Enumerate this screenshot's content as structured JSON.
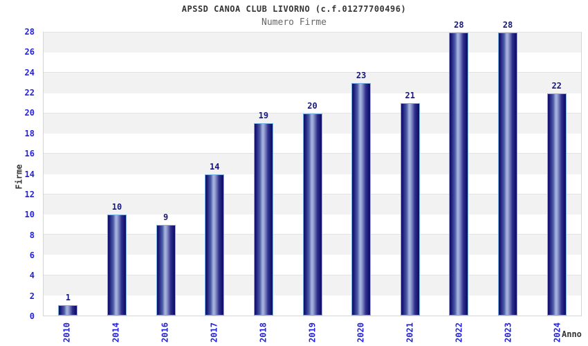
{
  "chart_data": {
    "type": "bar",
    "title": "APSSD CANOA CLUB LIVORNO (c.f.01277700496)",
    "subtitle": "Numero Firme",
    "xlabel": "Anno",
    "ylabel": "Firme",
    "categories": [
      "2010",
      "2014",
      "2016",
      "2017",
      "2018",
      "2019",
      "2020",
      "2021",
      "2022",
      "2023",
      "2024"
    ],
    "values": [
      1,
      10,
      9,
      14,
      19,
      20,
      23,
      21,
      28,
      28,
      22
    ],
    "ylim": [
      0,
      28
    ],
    "ytick_step": 2,
    "legend": "none",
    "grid": "horizontal-bands-alternating",
    "colors": {
      "title_text": "#343434",
      "subtitle_text": "#666666",
      "tick_label": "#2222dd",
      "value_label": "#17177c",
      "axis_title_text": "#343434",
      "band_fill": "#f2f2f2",
      "grid_line": "#e3e3e3",
      "plot_border": "#d4d4d4",
      "bar_dark": "#10106b",
      "bar_light": "#aab5de",
      "bar_border": "#7cb2e8",
      "background": "#ffffff"
    }
  }
}
